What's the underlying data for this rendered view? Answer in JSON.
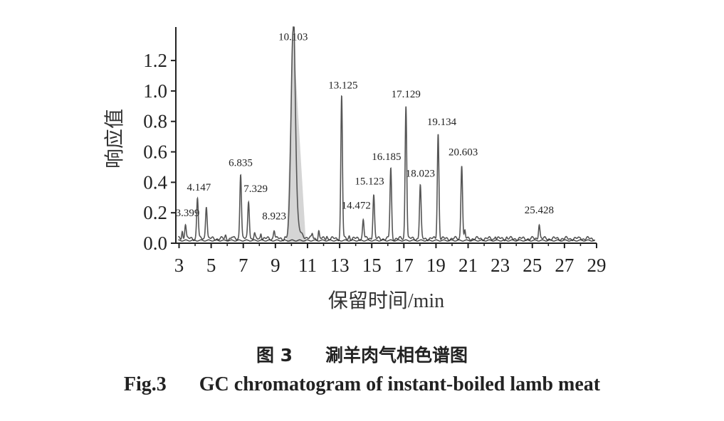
{
  "chart_data": {
    "type": "line",
    "title": "",
    "xlabel": "保留时间/min",
    "ylabel": "响应值",
    "xlim": [
      2.8,
      29.0
    ],
    "ylim": [
      0.0,
      1.42
    ],
    "x_ticks": [
      3,
      5,
      7,
      9,
      11,
      13,
      15,
      17,
      19,
      21,
      23,
      25,
      27,
      29
    ],
    "y_ticks": [
      0.0,
      0.2,
      0.4,
      0.6,
      0.8,
      1.0,
      1.2
    ],
    "y_tick_labels": [
      "0.0",
      "0.2",
      "0.4",
      "0.6",
      "0.8",
      "1.0",
      "1.2"
    ],
    "grid": false,
    "baseline": 0.03,
    "series": [
      {
        "peaks": [
          {
            "x": 3.399,
            "y": 0.13,
            "label": "3.399"
          },
          {
            "x": 4.147,
            "y": 0.3,
            "label": "4.147"
          },
          {
            "x": 4.7,
            "y": 0.25,
            "label": ""
          },
          {
            "x": 6.835,
            "y": 0.46,
            "label": "6.835"
          },
          {
            "x": 7.329,
            "y": 0.28,
            "label": "7.329"
          },
          {
            "x": 8.923,
            "y": 0.09,
            "label": "8.923"
          },
          {
            "x": 10.103,
            "y": 1.4,
            "label": "10.103"
          },
          {
            "x": 13.125,
            "y": 0.97,
            "label": "13.125"
          },
          {
            "x": 14.472,
            "y": 0.16,
            "label": "14.472"
          },
          {
            "x": 15.123,
            "y": 0.32,
            "label": "15.123"
          },
          {
            "x": 16.185,
            "y": 0.49,
            "label": "16.185"
          },
          {
            "x": 17.129,
            "y": 0.91,
            "label": "17.129"
          },
          {
            "x": 18.023,
            "y": 0.38,
            "label": "18.023"
          },
          {
            "x": 19.134,
            "y": 0.72,
            "label": "19.134"
          },
          {
            "x": 20.603,
            "y": 0.52,
            "label": "20.603"
          },
          {
            "x": 25.428,
            "y": 0.13,
            "label": "25.428"
          }
        ],
        "minor_peaks": [
          {
            "x": 3.2,
            "y": 0.08
          },
          {
            "x": 5.9,
            "y": 0.05
          },
          {
            "x": 6.3,
            "y": 0.04
          },
          {
            "x": 7.7,
            "y": 0.06
          },
          {
            "x": 8.1,
            "y": 0.07
          },
          {
            "x": 9.6,
            "y": 0.04
          },
          {
            "x": 11.3,
            "y": 0.06
          },
          {
            "x": 11.7,
            "y": 0.08
          },
          {
            "x": 12.2,
            "y": 0.05
          },
          {
            "x": 13.6,
            "y": 0.05
          },
          {
            "x": 20.8,
            "y": 0.08
          },
          {
            "x": 22.7,
            "y": 0.05
          },
          {
            "x": 23.4,
            "y": 0.04
          },
          {
            "x": 28.0,
            "y": 0.04
          }
        ]
      }
    ]
  },
  "caption": {
    "cn_fig": "图 3",
    "cn_title": "涮羊肉气相色谱图",
    "en_fig": "Fig.3",
    "en_title": "GC chromatogram of instant-boiled lamb meat"
  }
}
